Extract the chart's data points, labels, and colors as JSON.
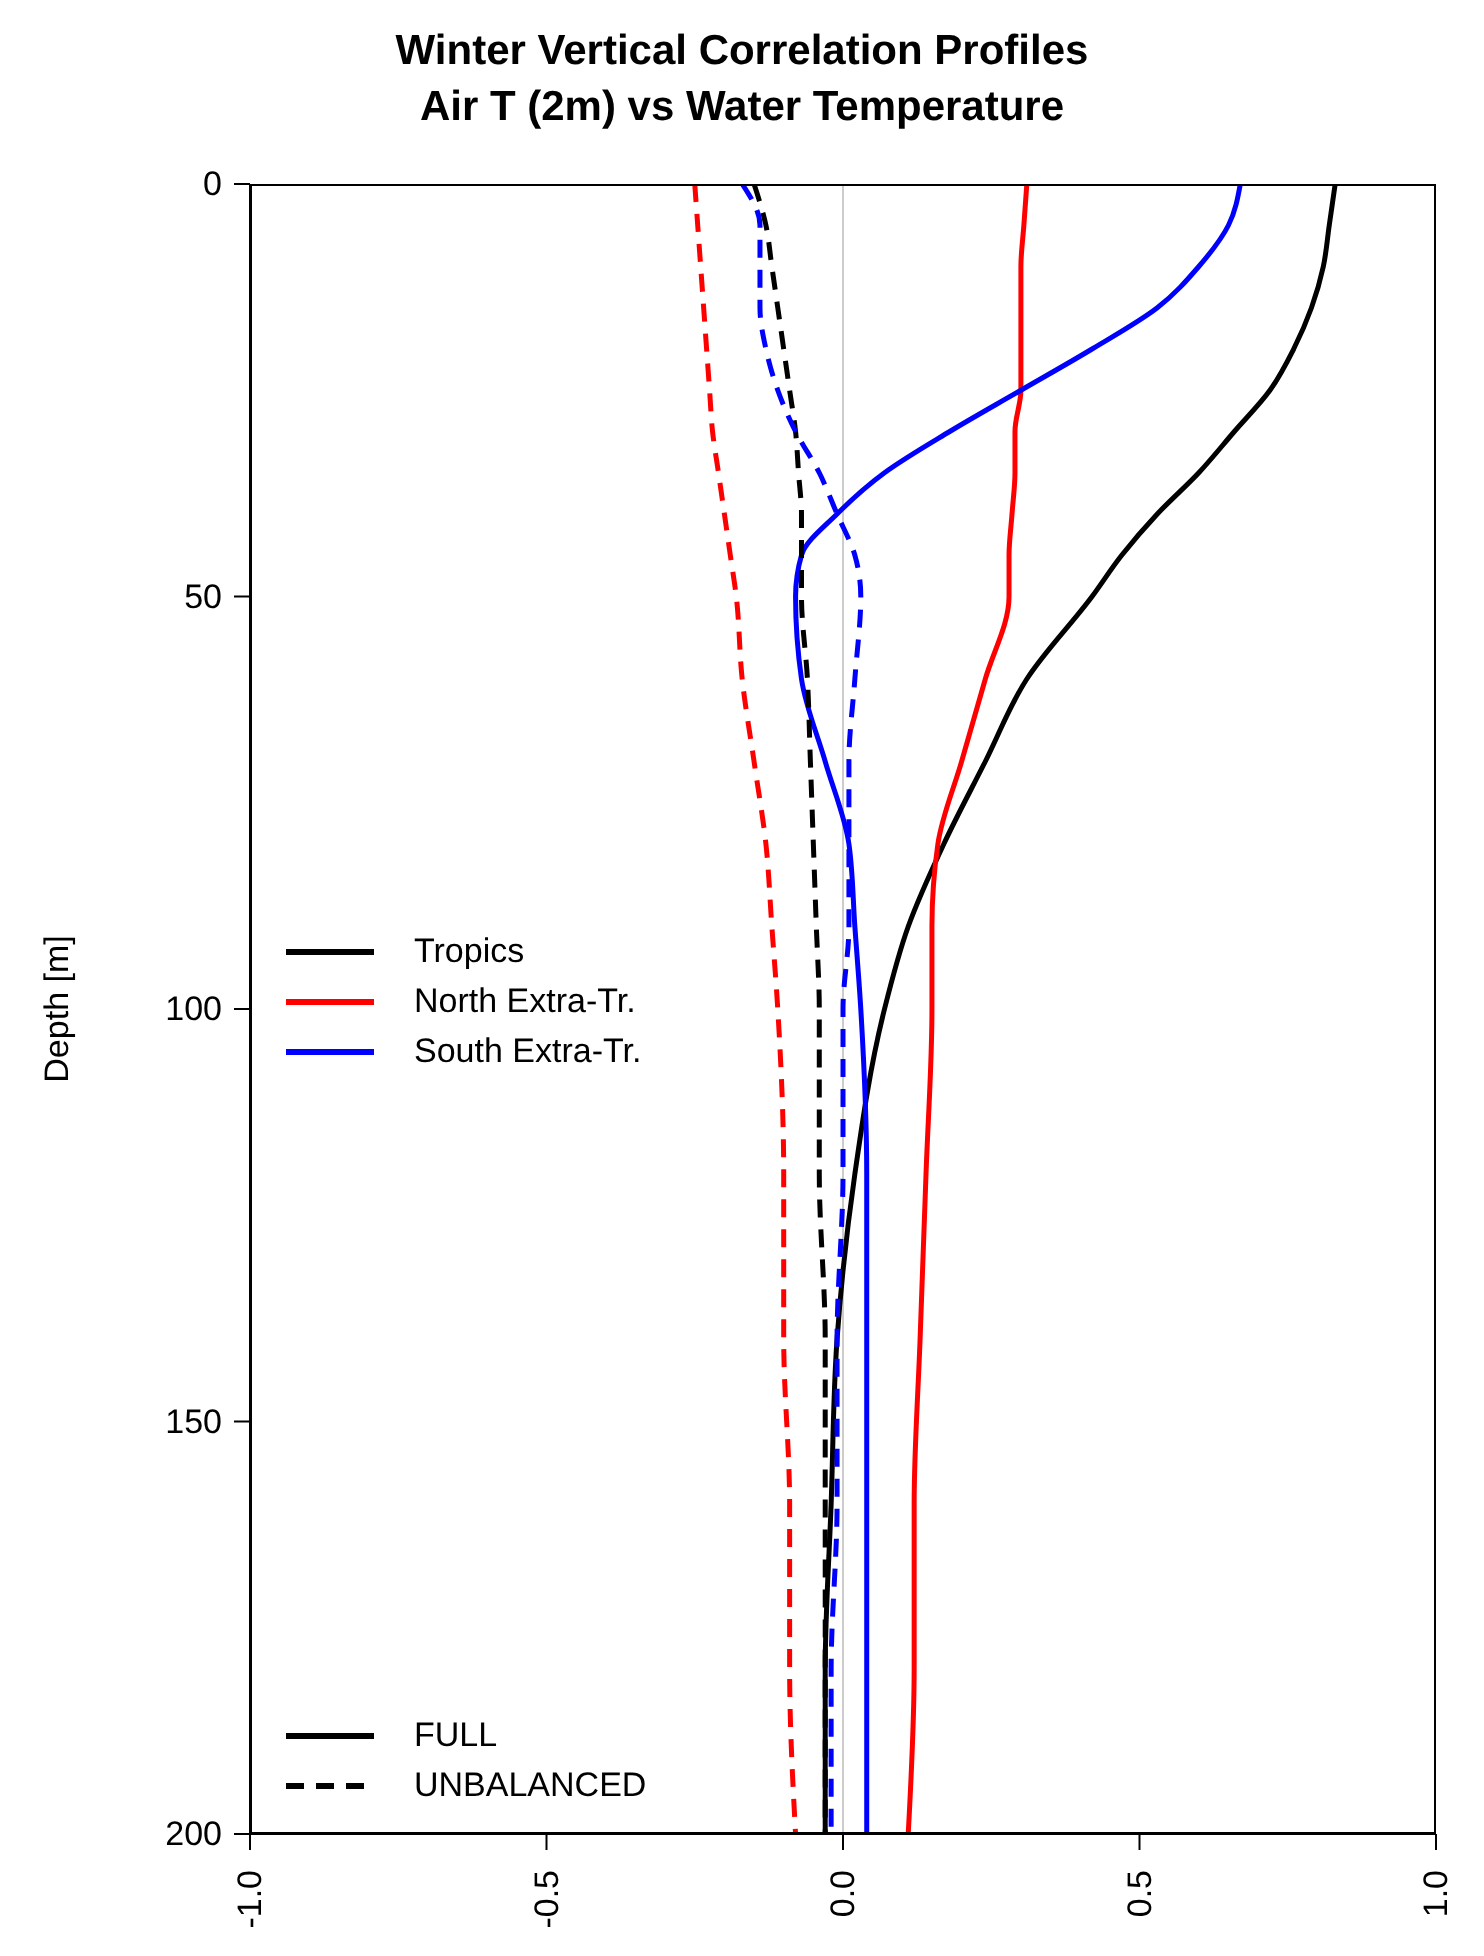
{
  "chart_data": {
    "type": "line",
    "title": "Winter Vertical Correlation Profiles\nAir T (2m) vs Water Temperature",
    "ylabel": "Depth [m]",
    "orientation": "horizontal",
    "x": [
      0,
      5,
      10,
      15,
      20,
      25,
      30,
      35,
      40,
      45,
      50,
      60,
      70,
      80,
      90,
      100,
      120,
      140,
      160,
      180,
      200
    ],
    "series": [
      {
        "name": "Tropics",
        "color": "#000000",
        "line_style": "solid",
        "values": [
          0.83,
          0.82,
          0.81,
          0.79,
          0.76,
          0.72,
          0.66,
          0.6,
          0.53,
          0.47,
          0.42,
          0.31,
          0.24,
          0.17,
          0.11,
          0.07,
          0.02,
          -0.01,
          -0.02,
          -0.03,
          -0.03
        ]
      },
      {
        "name": "North Extra-Tr.",
        "color": "#ff0000",
        "line_style": "solid",
        "values": [
          0.31,
          0.305,
          0.3,
          0.3,
          0.3,
          0.3,
          0.29,
          0.29,
          0.285,
          0.28,
          0.28,
          0.24,
          0.2,
          0.16,
          0.15,
          0.15,
          0.14,
          0.13,
          0.12,
          0.12,
          0.11
        ]
      },
      {
        "name": "South Extra-Tr.",
        "color": "#0000ff",
        "line_style": "solid",
        "values": [
          0.67,
          0.65,
          0.6,
          0.53,
          0.42,
          0.3,
          0.18,
          0.07,
          -0.01,
          -0.07,
          -0.08,
          -0.07,
          -0.03,
          0.01,
          0.02,
          0.03,
          0.04,
          0.04,
          0.04,
          0.04,
          0.04
        ]
      },
      {
        "color": "#000000",
        "line_style": "dashed",
        "values": [
          -0.15,
          -0.13,
          -0.12,
          -0.11,
          -0.1,
          -0.09,
          -0.08,
          -0.075,
          -0.07,
          -0.07,
          -0.07,
          -0.06,
          -0.055,
          -0.05,
          -0.045,
          -0.04,
          -0.04,
          -0.03,
          -0.03,
          -0.03,
          -0.03
        ]
      },
      {
        "color": "#ff0000",
        "line_style": "dashed",
        "values": [
          -0.25,
          -0.245,
          -0.24,
          -0.235,
          -0.23,
          -0.225,
          -0.22,
          -0.21,
          -0.2,
          -0.19,
          -0.18,
          -0.17,
          -0.15,
          -0.13,
          -0.12,
          -0.11,
          -0.1,
          -0.1,
          -0.09,
          -0.09,
          -0.08
        ]
      },
      {
        "color": "#0000ff",
        "line_style": "dashed",
        "values": [
          -0.17,
          -0.14,
          -0.14,
          -0.14,
          -0.13,
          -0.11,
          -0.08,
          -0.04,
          -0.01,
          0.02,
          0.03,
          0.02,
          0.01,
          0.01,
          0.01,
          0.0,
          0.0,
          -0.01,
          -0.01,
          -0.02,
          -0.02
        ]
      }
    ],
    "annotations": [
      "FULL",
      "UNBALANCED"
    ],
    "xlim": [
      -1,
      1
    ],
    "xticks": [
      {
        "value": -1,
        "label": "-1.0"
      },
      {
        "value": -0.5,
        "label": "-0.5"
      },
      {
        "value": 0,
        "label": "0.0"
      },
      {
        "value": 0.5,
        "label": "0.5"
      },
      {
        "value": 1,
        "label": "1.0"
      }
    ],
    "ylim": [
      200,
      0
    ],
    "yticks": [
      0,
      50,
      100,
      150,
      200
    ],
    "ref_lines": [
      {
        "axis": "x",
        "value": 0,
        "color": "#cccccc"
      }
    ],
    "grid": false,
    "legend": "left",
    "marker": "none"
  }
}
